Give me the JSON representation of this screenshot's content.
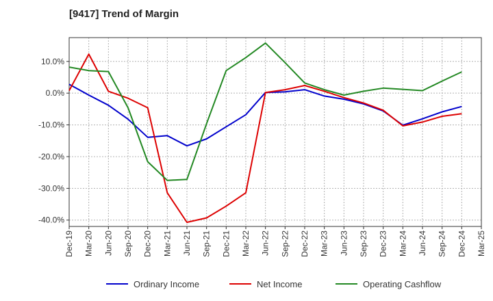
{
  "chart_data": {
    "type": "line",
    "title": "[9417]  Trend of Margin",
    "xlabel": "",
    "ylabel": "",
    "x": [
      "Dec-19",
      "Mar-20",
      "Jun-20",
      "Sep-20",
      "Dec-20",
      "Mar-21",
      "Jun-21",
      "Sep-21",
      "Dec-21",
      "Mar-22",
      "Jun-22",
      "Sep-22",
      "Dec-22",
      "Mar-23",
      "Jun-23",
      "Sep-23",
      "Dec-23",
      "Mar-24",
      "Jun-24",
      "Sep-24",
      "Dec-24"
    ],
    "x_ticks": [
      "Dec-19",
      "Mar-20",
      "Jun-20",
      "Sep-20",
      "Dec-20",
      "Mar-21",
      "Jun-21",
      "Sep-21",
      "Dec-21",
      "Mar-22",
      "Jun-22",
      "Sep-22",
      "Dec-22",
      "Mar-23",
      "Jun-23",
      "Sep-23",
      "Dec-23",
      "Mar-24",
      "Jun-24",
      "Sep-24",
      "Dec-24",
      "Mar-25"
    ],
    "y_ticks": [
      10,
      0,
      -10,
      -20,
      -30,
      -40
    ],
    "y_tick_labels": [
      "10.0%",
      "0.0%",
      "-10.0%",
      "-20.0%",
      "-30.0%",
      "-40.0%"
    ],
    "ylim": [
      -42,
      17.5
    ],
    "grid": true,
    "legend_position": "bottom",
    "series": [
      {
        "name": "Ordinary Income",
        "color": "#0000cc",
        "values": [
          2.8,
          -0.6,
          -3.8,
          -8.2,
          -13.9,
          -13.4,
          -16.6,
          -14.4,
          -10.6,
          -6.8,
          0.2,
          0.4,
          1.1,
          -0.9,
          -1.9,
          -3.4,
          -5.6,
          -10.1,
          -8.1,
          -5.9,
          -4.2
        ]
      },
      {
        "name": "Net Income",
        "color": "#dd0000",
        "values": [
          0.8,
          12.3,
          0.6,
          -1.6,
          -4.6,
          -31.4,
          -40.7,
          -39.3,
          -35.6,
          -31.4,
          0.2,
          1.1,
          2.4,
          0.6,
          -1.4,
          -3.1,
          -5.4,
          -10.3,
          -9.1,
          -7.3,
          -6.5
        ]
      },
      {
        "name": "Operating Cashflow",
        "color": "#228822",
        "values": [
          8.2,
          7.1,
          6.8,
          -4.6,
          -21.6,
          -27.5,
          -27.2,
          -9.6,
          7.1,
          11.2,
          15.8,
          9.6,
          3.2,
          1.1,
          -0.6,
          0.6,
          1.6,
          1.2,
          0.8,
          3.8,
          6.7
        ]
      }
    ]
  }
}
